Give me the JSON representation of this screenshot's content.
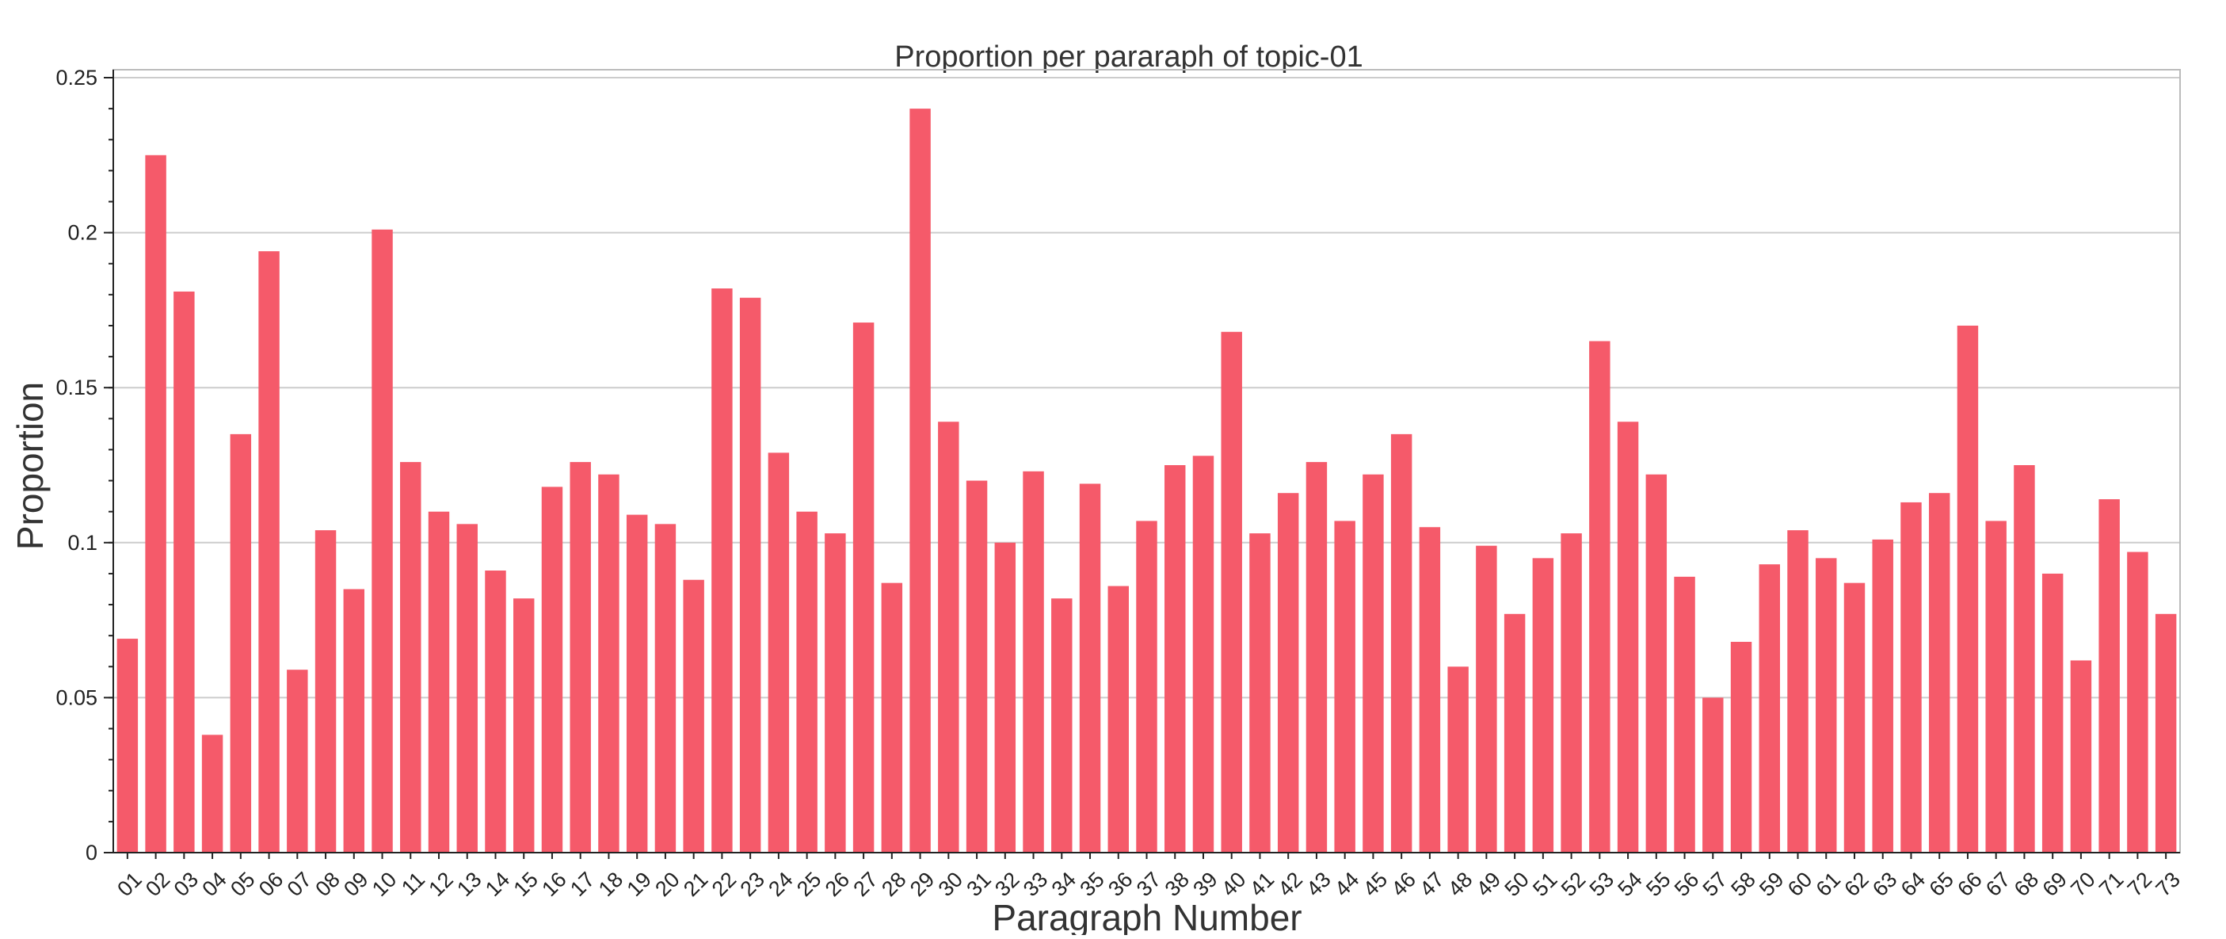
{
  "chart_data": {
    "type": "bar",
    "title": "Proportion per pararaph of topic-01",
    "xlabel": "Paragraph Number",
    "ylabel": "Proportion",
    "ylim": [
      0,
      0.25
    ],
    "yticks": [
      0,
      0.05,
      0.1,
      0.15,
      0.2,
      0.25
    ],
    "ytick_labels": [
      "0",
      "0.05",
      "0.1",
      "0.15",
      "0.2",
      "0.25"
    ],
    "grid": "horizontal",
    "bar_color": "#f55a6a",
    "categories": [
      "01",
      "02",
      "03",
      "04",
      "05",
      "06",
      "07",
      "08",
      "09",
      "10",
      "11",
      "12",
      "13",
      "14",
      "15",
      "16",
      "17",
      "18",
      "19",
      "20",
      "21",
      "22",
      "23",
      "24",
      "25",
      "26",
      "27",
      "28",
      "29",
      "30",
      "31",
      "32",
      "33",
      "34",
      "35",
      "36",
      "37",
      "38",
      "39",
      "40",
      "41",
      "42",
      "43",
      "44",
      "45",
      "46",
      "47",
      "48",
      "49",
      "50",
      "51",
      "52",
      "53",
      "54",
      "55",
      "56",
      "57",
      "58",
      "59",
      "60",
      "61",
      "62",
      "63",
      "64",
      "65",
      "66",
      "67",
      "68",
      "69",
      "70",
      "71",
      "72",
      "73"
    ],
    "values": [
      0.069,
      0.225,
      0.181,
      0.038,
      0.135,
      0.194,
      0.059,
      0.104,
      0.085,
      0.201,
      0.126,
      0.11,
      0.106,
      0.091,
      0.082,
      0.118,
      0.126,
      0.122,
      0.109,
      0.106,
      0.088,
      0.182,
      0.179,
      0.129,
      0.11,
      0.103,
      0.171,
      0.087,
      0.24,
      0.139,
      0.12,
      0.1,
      0.123,
      0.082,
      0.119,
      0.086,
      0.107,
      0.125,
      0.128,
      0.168,
      0.103,
      0.116,
      0.126,
      0.107,
      0.122,
      0.135,
      0.105,
      0.06,
      0.099,
      0.077,
      0.095,
      0.103,
      0.165,
      0.139,
      0.122,
      0.089,
      0.05,
      0.068,
      0.093,
      0.104,
      0.095,
      0.087,
      0.101,
      0.113,
      0.116,
      0.17,
      0.107,
      0.125,
      0.09,
      0.062,
      0.114,
      0.097,
      0.077
    ]
  }
}
